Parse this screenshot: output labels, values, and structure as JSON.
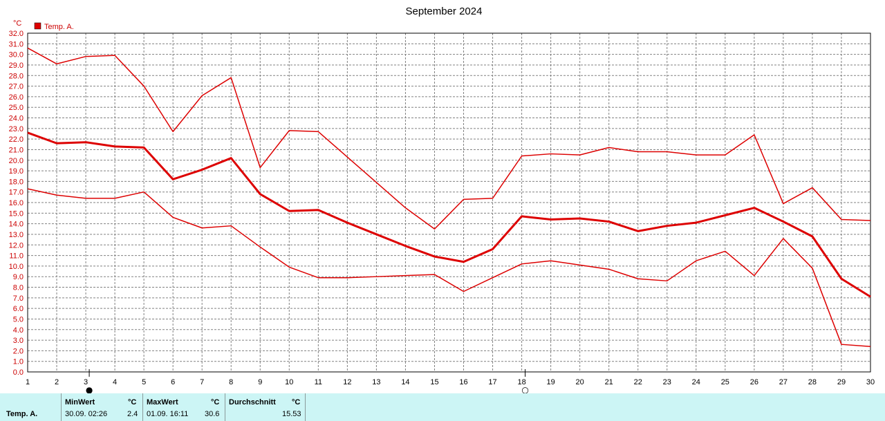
{
  "colors": {
    "series": "#dd0000",
    "grid": "#808080",
    "axis": "#000000",
    "stats_bg": "#ccf5f5"
  },
  "chart_data": {
    "type": "line",
    "title": "September 2024",
    "y_unit": "°C",
    "legend": [
      {
        "name": "Temp. A.",
        "color": "#dd0000"
      }
    ],
    "legend_position": "top-left",
    "grid": true,
    "x": [
      1,
      2,
      3,
      4,
      5,
      6,
      7,
      8,
      9,
      10,
      11,
      12,
      13,
      14,
      15,
      16,
      17,
      18,
      19,
      20,
      21,
      22,
      23,
      24,
      25,
      26,
      27,
      28,
      29,
      30
    ],
    "xlim": [
      1,
      30
    ],
    "ylim": [
      0,
      32
    ],
    "y_ticks": [
      "0.0",
      "1.0",
      "2.0",
      "3.0",
      "4.0",
      "5.0",
      "6.0",
      "7.0",
      "8.0",
      "9.0",
      "10.0",
      "11.0",
      "12.0",
      "13.0",
      "14.0",
      "15.0",
      "16.0",
      "17.0",
      "18.0",
      "19.0",
      "20.0",
      "21.0",
      "22.0",
      "23.0",
      "24.0",
      "25.0",
      "26.0",
      "27.0",
      "28.0",
      "29.0",
      "30.0",
      "31.0",
      "32.0"
    ],
    "series": [
      {
        "values": [
          30.6,
          29.1,
          29.8,
          29.9,
          27.0,
          22.7,
          26.1,
          27.8,
          19.3,
          22.8,
          22.7,
          20.3,
          17.9,
          15.5,
          13.5,
          16.3,
          16.4,
          20.4,
          20.6,
          20.5,
          21.2,
          20.8,
          20.8,
          20.5,
          20.5,
          22.4,
          15.9,
          17.4,
          14.4,
          14.3
        ],
        "stroke": 1.5
      },
      {
        "values": [
          22.6,
          21.6,
          21.7,
          21.3,
          21.2,
          18.2,
          19.1,
          20.2,
          16.8,
          15.2,
          15.3,
          14.1,
          13.0,
          11.9,
          10.9,
          10.4,
          11.6,
          14.7,
          14.4,
          14.5,
          14.2,
          13.3,
          13.8,
          14.1,
          14.8,
          15.5,
          14.2,
          12.8,
          8.8,
          7.1
        ],
        "stroke": 3
      },
      {
        "values": [
          17.3,
          16.7,
          16.4,
          16.4,
          17.0,
          14.6,
          13.6,
          13.8,
          11.8,
          9.9,
          8.9,
          8.9,
          9.0,
          9.1,
          9.2,
          7.6,
          8.9,
          10.2,
          10.5,
          10.1,
          9.7,
          8.8,
          8.6,
          10.5,
          11.4,
          9.1,
          12.6,
          9.8,
          2.6,
          2.4
        ],
        "stroke": 1.5
      }
    ],
    "markers": [
      {
        "day": 3,
        "symbol": "●"
      },
      {
        "day": 18,
        "symbol": "○"
      }
    ]
  },
  "stats": {
    "series_label": "Temp. A.",
    "min": {
      "title": "MinWert",
      "unit": "°C",
      "when": "30.09.  02:26",
      "value": "2.4"
    },
    "max": {
      "title": "MaxWert",
      "unit": "°C",
      "when": "01.09.  16:11",
      "value": "30.6"
    },
    "avg": {
      "title": "Durchschnitt",
      "unit": "°C",
      "value": "15.53"
    }
  }
}
